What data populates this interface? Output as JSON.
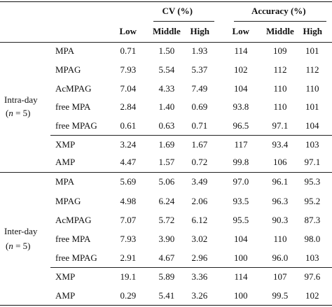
{
  "header": {
    "cv_label": "CV (%)",
    "accuracy_label": "Accuracy (%)",
    "cv_levels": [
      "Low",
      "Middle",
      "High"
    ],
    "acc_levels": [
      "Low",
      "Middle",
      "High"
    ]
  },
  "groups": [
    {
      "label_line1": "Intra-day",
      "label_n_pre": "(",
      "label_n_var": "n",
      "label_n_post": " = 5)",
      "rows": [
        {
          "analyte": "MPA",
          "cv": [
            "0.71",
            "1.50",
            "1.93"
          ],
          "acc": [
            "114",
            "109",
            "101"
          ]
        },
        {
          "analyte": "MPAG",
          "cv": [
            "7.93",
            "5.54",
            "5.37"
          ],
          "acc": [
            "102",
            "112",
            "112"
          ]
        },
        {
          "analyte": "AcMPAG",
          "cv": [
            "7.04",
            "4.33",
            "7.49"
          ],
          "acc": [
            "104",
            "110",
            "110"
          ]
        },
        {
          "analyte": "free MPA",
          "cv": [
            "2.84",
            "1.40",
            "0.69"
          ],
          "acc": [
            "93.8",
            "110",
            "101"
          ]
        },
        {
          "analyte": "free MPAG",
          "cv": [
            "0.61",
            "0.63",
            "0.71"
          ],
          "acc": [
            "96.5",
            "97.1",
            "104"
          ]
        },
        {
          "analyte": "XMP",
          "cv": [
            "3.24",
            "1.69",
            "1.67"
          ],
          "acc": [
            "117",
            "93.4",
            "103"
          ]
        },
        {
          "analyte": "AMP",
          "cv": [
            "4.47",
            "1.57",
            "0.72"
          ],
          "acc": [
            "99.8",
            "106",
            "97.1"
          ]
        }
      ]
    },
    {
      "label_line1": "Inter-day",
      "label_n_pre": "(",
      "label_n_var": "n",
      "label_n_post": " = 5)",
      "rows": [
        {
          "analyte": "MPA",
          "cv": [
            "5.69",
            "5.06",
            "3.49"
          ],
          "acc": [
            "97.0",
            "96.1",
            "95.3"
          ]
        },
        {
          "analyte": "MPAG",
          "cv": [
            "4.98",
            "6.24",
            "2.06"
          ],
          "acc": [
            "93.5",
            "96.3",
            "95.2"
          ]
        },
        {
          "analyte": "AcMPAG",
          "cv": [
            "7.07",
            "5.72",
            "6.12"
          ],
          "acc": [
            "95.5",
            "90.3",
            "87.3"
          ]
        },
        {
          "analyte": "free MPA",
          "cv": [
            "7.93",
            "3.90",
            "3.02"
          ],
          "acc": [
            "104",
            "110",
            "98.0"
          ]
        },
        {
          "analyte": "free MPAG",
          "cv": [
            "2.91",
            "4.67",
            "2.96"
          ],
          "acc": [
            "100",
            "96.0",
            "103"
          ]
        },
        {
          "analyte": "XMP",
          "cv": [
            "19.1",
            "5.89",
            "3.36"
          ],
          "acc": [
            "114",
            "107",
            "97.6"
          ]
        },
        {
          "analyte": "AMP",
          "cv": [
            "0.29",
            "5.41",
            "3.26"
          ],
          "acc": [
            "100",
            "99.5",
            "102"
          ]
        }
      ]
    }
  ]
}
